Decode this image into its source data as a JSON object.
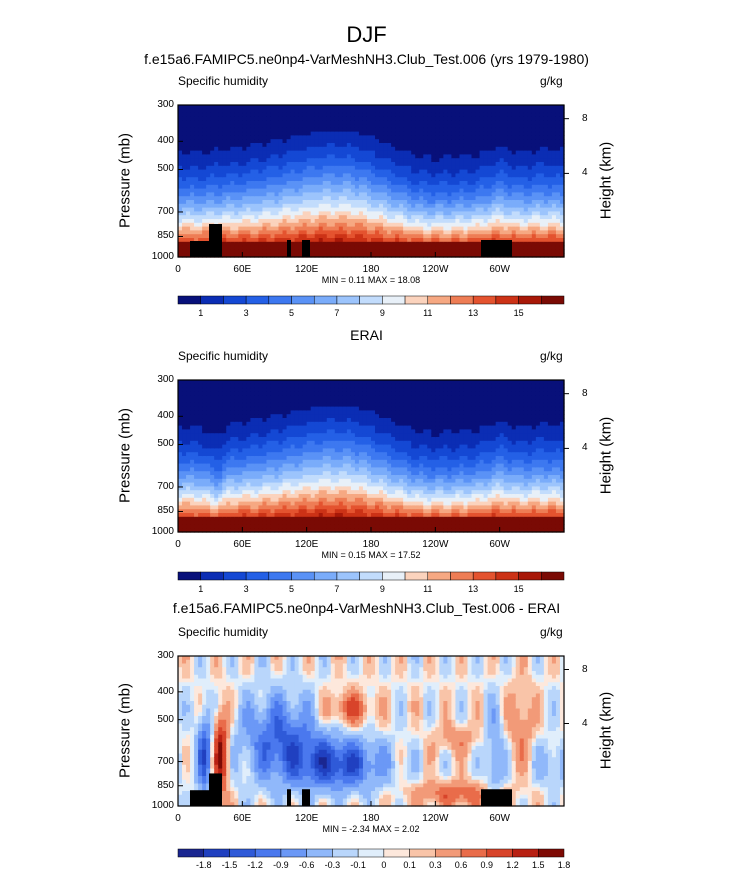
{
  "figure": {
    "title": "DJF"
  },
  "colors": {
    "seq": [
      "#08107a",
      "#0b2db4",
      "#1448d4",
      "#2460e6",
      "#3d78f0",
      "#5a92f6",
      "#7aacfa",
      "#9cc4fc",
      "#c2dcfc",
      "#e8f0f8",
      "#fbd3bd",
      "#f6a882",
      "#ee7d55",
      "#e4532f",
      "#cc3216",
      "#a81808",
      "#7a0a04"
    ],
    "diff": [
      "#1a2690",
      "#2040c0",
      "#2f5ad8",
      "#4a78ee",
      "#6b98f6",
      "#90b8fa",
      "#b9d6fb",
      "#e0eefb",
      "#fde8dc",
      "#f9c4a8",
      "#f29a78",
      "#e96c4a",
      "#d8442a",
      "#b82012",
      "#7e0a04"
    ]
  },
  "chart_data": [
    {
      "type": "heatmap",
      "title": "f.e15a6.FAMIPC5.ne0np4-VarMeshNH3.Club_Test.006 (yrs 1979-1980)",
      "variable_label": "Specific humidity",
      "units": "g/kg",
      "ylabel": "Pressure (mb)",
      "ylabel_right": "Height (km)",
      "pressure_ticks": [
        "300",
        "400",
        "500",
        "700",
        "850",
        "1000"
      ],
      "height_ticks": [
        "8",
        "4"
      ],
      "lon_ticks": [
        "0",
        "60E",
        "120E",
        "180",
        "120W",
        "60W"
      ],
      "min_max": "MIN =  0.11  MAX =  18.08",
      "colorbar_labels": [
        "1",
        "3",
        "5",
        "7",
        "9",
        "11",
        "13",
        "15"
      ],
      "min": 0.11,
      "max": 18.08
    },
    {
      "type": "heatmap",
      "title": "ERAI",
      "variable_label": "Specific humidity",
      "units": "g/kg",
      "ylabel": "Pressure (mb)",
      "ylabel_right": "Height (km)",
      "pressure_ticks": [
        "300",
        "400",
        "500",
        "700",
        "850",
        "1000"
      ],
      "height_ticks": [
        "8",
        "4"
      ],
      "lon_ticks": [
        "0",
        "60E",
        "120E",
        "180",
        "120W",
        "60W"
      ],
      "min_max": "MIN =  0.15  MAX =  17.52",
      "colorbar_labels": [
        "1",
        "3",
        "5",
        "7",
        "9",
        "11",
        "13",
        "15"
      ],
      "min": 0.15,
      "max": 17.52
    },
    {
      "type": "heatmap",
      "title": "f.e15a6.FAMIPC5.ne0np4-VarMeshNH3.Club_Test.006 - ERAI",
      "variable_label": "Specific humidity",
      "units": "g/kg",
      "ylabel": "Pressure (mb)",
      "ylabel_right": "Height (km)",
      "pressure_ticks": [
        "300",
        "400",
        "500",
        "700",
        "850",
        "1000"
      ],
      "height_ticks": [
        "8",
        "4"
      ],
      "lon_ticks": [
        "0",
        "60E",
        "120E",
        "180",
        "120W",
        "60W"
      ],
      "min_max": "MIN = -2.34  MAX =  2.02",
      "colorbar_labels": [
        "-1.8",
        "-1.5",
        "-1.2",
        "-0.9",
        "-0.6",
        "-0.3",
        "-0.1",
        "0",
        "0.1",
        "0.3",
        "0.6",
        "0.9",
        "1.2",
        "1.5",
        "1.8"
      ],
      "min": -2.34,
      "max": 2.02
    }
  ]
}
